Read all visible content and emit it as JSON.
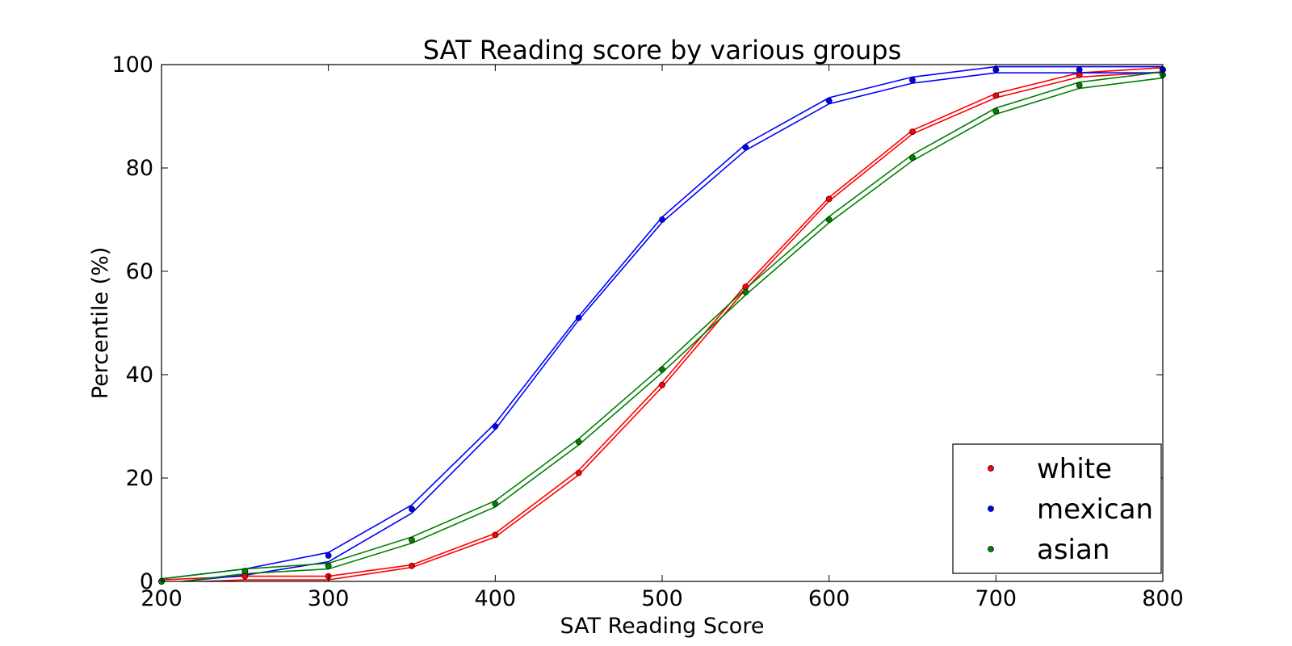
{
  "chart_data": {
    "type": "line",
    "title": "SAT Reading score by various groups",
    "xlabel": "SAT Reading Score",
    "ylabel": "Percentile (%)",
    "xlim": [
      200,
      800
    ],
    "ylim": [
      0,
      100
    ],
    "x_ticks": [
      "200",
      "300",
      "400",
      "500",
      "600",
      "700",
      "800"
    ],
    "y_ticks": [
      "0",
      "20",
      "40",
      "60",
      "80",
      "100"
    ],
    "grid": false,
    "legend_position": "lower-right",
    "x": [
      200,
      250,
      300,
      350,
      400,
      450,
      500,
      550,
      600,
      650,
      700,
      750,
      800
    ],
    "series": [
      {
        "name": "white",
        "color": "#ff0000",
        "values": [
          0,
          1,
          1,
          3,
          9,
          21,
          38,
          57,
          74,
          87,
          94,
          98,
          99
        ],
        "band_upper": [
          0.3,
          1.0,
          1.0,
          3.2,
          9.3,
          21.5,
          38.5,
          57.3,
          74.3,
          87.3,
          94.4,
          98.4,
          99.4
        ],
        "band_lower": [
          -0.3,
          0.3,
          0.3,
          2.7,
          8.6,
          20.6,
          37.6,
          56.5,
          73.6,
          86.6,
          93.6,
          97.6,
          98.6
        ]
      },
      {
        "name": "mexican",
        "color": "#0000ff",
        "values": [
          0,
          2,
          5,
          14,
          30,
          51,
          70,
          84,
          93,
          97,
          99,
          99,
          99
        ],
        "band_upper": [
          0.5,
          2.4,
          5.6,
          14.8,
          30.6,
          51.3,
          70.5,
          84.6,
          93.6,
          97.6,
          99.6,
          99.6,
          99.6
        ],
        "band_lower": [
          -0.4,
          1.2,
          3.8,
          13.2,
          29.4,
          50.6,
          69.5,
          83.4,
          92.4,
          96.4,
          98.4,
          98.4,
          98.4
        ]
      },
      {
        "name": "asian",
        "color": "#008000",
        "values": [
          0,
          2,
          3,
          8,
          15,
          27,
          41,
          56,
          70,
          82,
          91,
          96,
          98
        ],
        "band_upper": [
          0.5,
          2.4,
          3.5,
          8.6,
          15.6,
          27.6,
          41.6,
          56.6,
          70.6,
          82.6,
          91.6,
          96.6,
          98.6
        ],
        "band_lower": [
          -0.5,
          1.5,
          2.4,
          7.4,
          14.4,
          26.4,
          40.4,
          55.4,
          69.4,
          81.4,
          90.4,
          95.4,
          97.4
        ]
      }
    ]
  }
}
